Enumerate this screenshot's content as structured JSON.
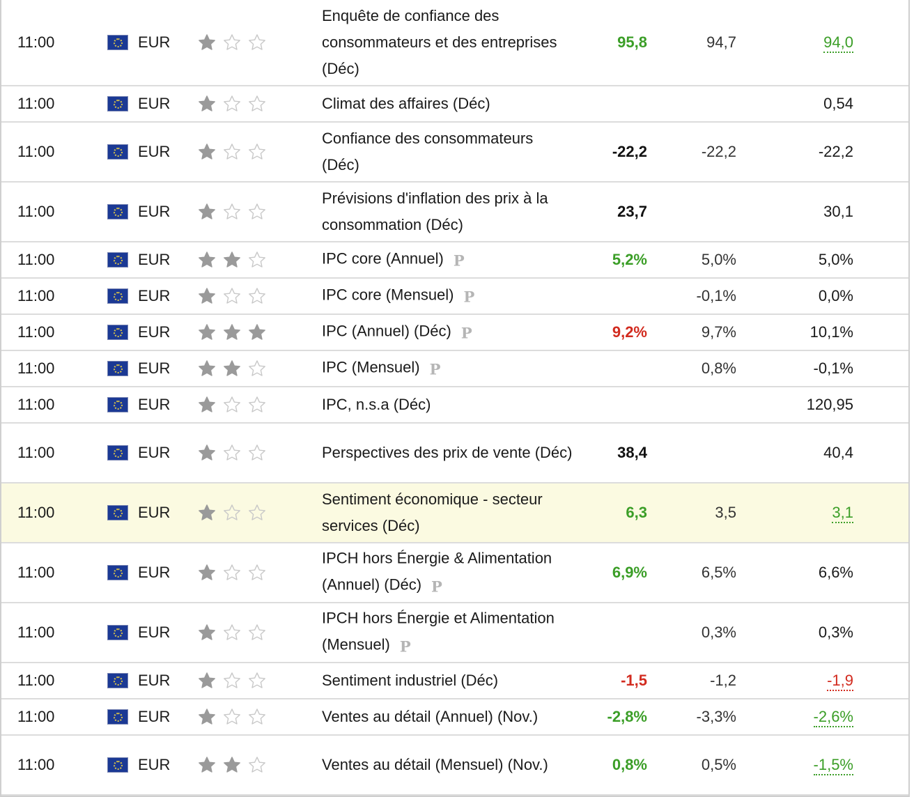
{
  "colors": {
    "positive": "#3b9e27",
    "negative": "#d22b1f",
    "highlight_row": "#fbfae1",
    "star_filled": "#9a9a9a",
    "star_empty": "#c8c8c8"
  },
  "rows": [
    {
      "time": "11:00",
      "currency": "EUR",
      "importance": 1,
      "event": "Enquête de confiance des consommateurs et des entreprises (Déc)",
      "preliminary": false,
      "actual": "95,8",
      "actual_status": "green",
      "forecast": "94,7",
      "previous": "94,0",
      "previous_status": "rev-green",
      "highlighted": false,
      "height": 124
    },
    {
      "time": "11:00",
      "currency": "EUR",
      "importance": 1,
      "event": "Climat des affaires (Déc)",
      "preliminary": false,
      "actual": "",
      "actual_status": "",
      "forecast": "",
      "previous": "0,54",
      "previous_status": "",
      "highlighted": false,
      "height": 52
    },
    {
      "time": "11:00",
      "currency": "EUR",
      "importance": 1,
      "event": "Confiance des consommateurs (Déc)",
      "preliminary": false,
      "actual": "-22,2",
      "actual_status": "black",
      "forecast": "-22,2",
      "previous": "-22,2",
      "previous_status": "",
      "highlighted": false,
      "height": 86
    },
    {
      "time": "11:00",
      "currency": "EUR",
      "importance": 1,
      "event": "Prévisions d'inflation des prix à la consommation (Déc)",
      "preliminary": false,
      "actual": "23,7",
      "actual_status": "black",
      "forecast": "",
      "previous": "30,1",
      "previous_status": "",
      "highlighted": false,
      "height": 86
    },
    {
      "time": "11:00",
      "currency": "EUR",
      "importance": 2,
      "event": "IPC core (Annuel)",
      "preliminary": true,
      "actual": "5,2%",
      "actual_status": "green",
      "forecast": "5,0%",
      "previous": "5,0%",
      "previous_status": "",
      "highlighted": false,
      "height": 52
    },
    {
      "time": "11:00",
      "currency": "EUR",
      "importance": 1,
      "event": "IPC core (Mensuel)",
      "preliminary": true,
      "actual": "",
      "actual_status": "",
      "forecast": "-0,1%",
      "previous": "0,0%",
      "previous_status": "",
      "highlighted": false,
      "height": 52
    },
    {
      "time": "11:00",
      "currency": "EUR",
      "importance": 3,
      "event": "IPC (Annuel) (Déc)",
      "preliminary": true,
      "actual": "9,2%",
      "actual_status": "red",
      "forecast": "9,7%",
      "previous": "10,1%",
      "previous_status": "",
      "highlighted": false,
      "height": 52
    },
    {
      "time": "11:00",
      "currency": "EUR",
      "importance": 2,
      "event": "IPC (Mensuel)",
      "preliminary": true,
      "actual": "",
      "actual_status": "",
      "forecast": "0,8%",
      "previous": "-0,1%",
      "previous_status": "",
      "highlighted": false,
      "height": 52
    },
    {
      "time": "11:00",
      "currency": "EUR",
      "importance": 1,
      "event": "IPC, n.s.a (Déc)",
      "preliminary": false,
      "actual": "",
      "actual_status": "",
      "forecast": "",
      "previous": "120,95",
      "previous_status": "",
      "highlighted": false,
      "height": 52
    },
    {
      "time": "11:00",
      "currency": "EUR",
      "importance": 1,
      "event": "Perspectives des prix de vente (Déc)",
      "preliminary": false,
      "actual": "38,4",
      "actual_status": "black",
      "forecast": "",
      "previous": "40,4",
      "previous_status": "",
      "highlighted": false,
      "height": 86
    },
    {
      "time": "11:00",
      "currency": "EUR",
      "importance": 1,
      "event": "Sentiment économique - secteur services (Déc)",
      "preliminary": false,
      "actual": "6,3",
      "actual_status": "green",
      "forecast": "3,5",
      "previous": "3,1",
      "previous_status": "rev-green",
      "highlighted": true,
      "height": 86
    },
    {
      "time": "11:00",
      "currency": "EUR",
      "importance": 1,
      "event": "IPCH hors Énergie & Alimentation (Annuel) (Déc)",
      "preliminary": true,
      "actual": "6,9%",
      "actual_status": "green",
      "forecast": "6,5%",
      "previous": "6,6%",
      "previous_status": "",
      "highlighted": false,
      "height": 86
    },
    {
      "time": "11:00",
      "currency": "EUR",
      "importance": 1,
      "event": "IPCH hors Énergie et Alimentation (Mensuel)",
      "preliminary": true,
      "actual": "",
      "actual_status": "",
      "forecast": "0,3%",
      "previous": "0,3%",
      "previous_status": "",
      "highlighted": false,
      "height": 86
    },
    {
      "time": "11:00",
      "currency": "EUR",
      "importance": 1,
      "event": "Sentiment industriel (Déc)",
      "preliminary": false,
      "actual": "-1,5",
      "actual_status": "red",
      "forecast": "-1,2",
      "previous": "-1,9",
      "previous_status": "rev-red",
      "highlighted": false,
      "height": 52
    },
    {
      "time": "11:00",
      "currency": "EUR",
      "importance": 1,
      "event": "Ventes au détail (Annuel) (Nov.)",
      "preliminary": false,
      "actual": "-2,8%",
      "actual_status": "green",
      "forecast": "-3,3%",
      "previous": "-2,6%",
      "previous_status": "rev-green",
      "highlighted": false,
      "height": 52
    },
    {
      "time": "11:00",
      "currency": "EUR",
      "importance": 2,
      "event": "Ventes au détail (Mensuel) (Nov.)",
      "preliminary": false,
      "actual": "0,8%",
      "actual_status": "green",
      "forecast": "0,5%",
      "previous": "-1,5%",
      "previous_status": "rev-green",
      "highlighted": false,
      "height": 86
    }
  ],
  "preliminary_icon": "P",
  "flag_icon": "eu-flag-icon"
}
